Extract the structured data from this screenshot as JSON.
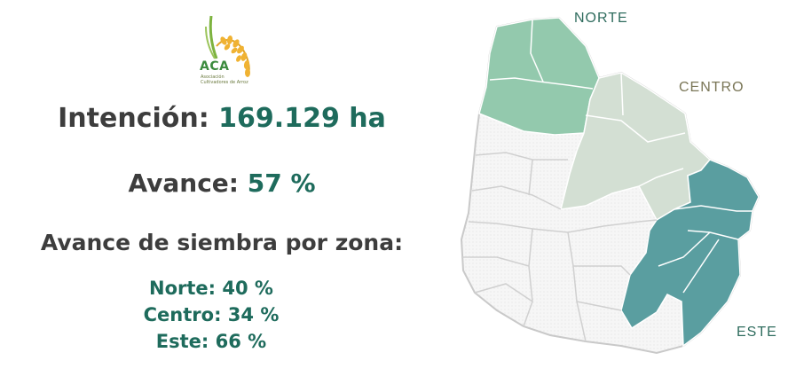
{
  "logo": {
    "name": "ACA",
    "subtitle_line1": "Asociación",
    "subtitle_line2": "Cultivadores de Arroz"
  },
  "stats": {
    "intencion_label": "Intención: ",
    "intencion_value": "169.129 ha",
    "avance_label": "Avance: ",
    "avance_value": "57 %",
    "zona_heading": "Avance de siembra por zona:"
  },
  "zones": [
    {
      "label": "Norte: ",
      "value": "40 %"
    },
    {
      "label": "Centro: ",
      "value": "34 %"
    },
    {
      "label": "Este: ",
      "value": "66 %"
    }
  ],
  "map": {
    "labels": {
      "norte": "NORTE",
      "centro": "CENTRO",
      "este": "ESTE"
    },
    "colors": {
      "norte": "#93c9ad",
      "centro": "#d3dfd3",
      "este": "#5a9ea0",
      "other": "#f4f4f4",
      "border": "#c9c9c9"
    }
  }
}
